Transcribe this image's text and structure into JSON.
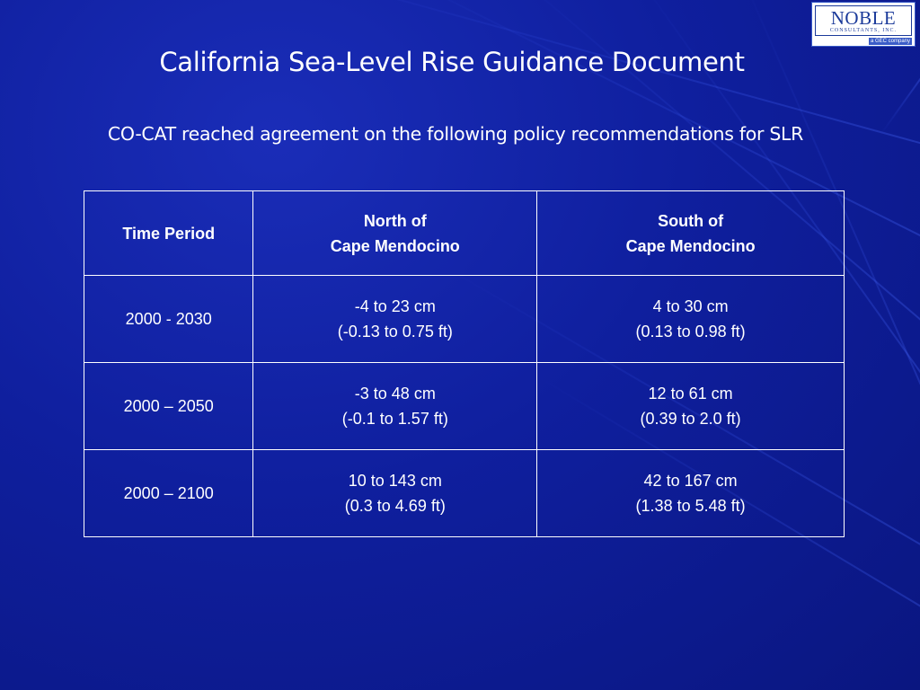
{
  "logo": {
    "name": "NOBLE",
    "subtitle": "CONSULTANTS, INC.",
    "company": "a GEC company"
  },
  "slide": {
    "title": "California Sea-Level Rise Guidance Document",
    "subtitle": "CO-CAT reached agreement on the following policy recommendations for SLR"
  },
  "table": {
    "headers": [
      {
        "line1": "Time Period",
        "line2": ""
      },
      {
        "line1": "North of",
        "line2": "Cape Mendocino"
      },
      {
        "line1": "South of",
        "line2": "Cape Mendocino"
      }
    ],
    "rows": [
      {
        "period": "2000 - 2030",
        "north": {
          "cm": "-4 to 23 cm",
          "ft": "(-0.13 to 0.75 ft)"
        },
        "south": {
          "cm": "4 to 30 cm",
          "ft": "(0.13 to 0.98 ft)"
        }
      },
      {
        "period": "2000 – 2050",
        "north": {
          "cm": "-3 to 48 cm",
          "ft": "(-0.1 to 1.57 ft)"
        },
        "south": {
          "cm": "12 to 61 cm",
          "ft": "(0.39 to 2.0 ft)"
        }
      },
      {
        "period": "2000 – 2100",
        "north": {
          "cm": "10 to 143 cm",
          "ft": "(0.3 to 4.69 ft)"
        },
        "south": {
          "cm": "42 to 167 cm",
          "ft": "(1.38 to 5.48 ft)"
        }
      }
    ]
  },
  "colors": {
    "background": "#0f1f9e",
    "text": "#ffffff",
    "logo_blue": "#1b3a9a"
  }
}
